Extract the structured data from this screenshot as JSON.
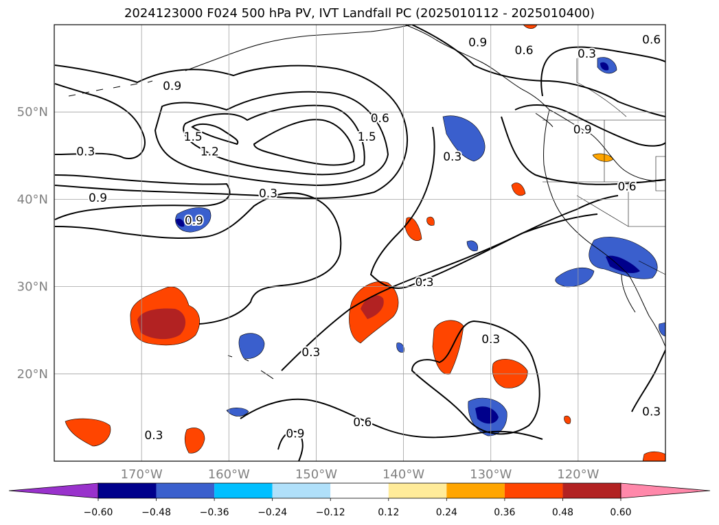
{
  "title": "2024123000 F024 500 hPa PV, IVT Landfall PC (2025010112 - 2025010400)",
  "map": {
    "lon_min": -180,
    "lon_max": -110,
    "lat_min": 10,
    "lat_max": 60,
    "lon_ticks": [
      -170,
      -160,
      -150,
      -140,
      -130,
      -120
    ],
    "lat_ticks": [
      20,
      30,
      40,
      50
    ],
    "lon_tick_labels": [
      "170°W",
      "160°W",
      "150°W",
      "140°W",
      "130°W",
      "120°W"
    ],
    "lat_tick_labels": [
      "20°N",
      "30°N",
      "40°N",
      "50°N"
    ],
    "grid": true
  },
  "colorbar": {
    "levels": [
      -0.6,
      -0.48,
      -0.36,
      -0.24,
      -0.12,
      0.12,
      0.24,
      0.36,
      0.48,
      0.6
    ],
    "tick_labels": [
      "−0.60",
      "−0.48",
      "−0.36",
      "−0.24",
      "−0.12",
      "0.12",
      "0.24",
      "0.36",
      "0.48",
      "0.60"
    ],
    "colors": [
      "#9932cc",
      "#00008b",
      "#3a5fcd",
      "#00bfff",
      "#b0e0fa",
      "#ffffff",
      "#ffeb99",
      "#ffa500",
      "#ff4500",
      "#b22222",
      "#ff88aa"
    ],
    "extend": "both"
  },
  "contour_labels": [
    {
      "text": "0.9",
      "lon": -166.5,
      "lat": 53.0
    },
    {
      "text": "0.9",
      "lon": -131.5,
      "lat": 58.0
    },
    {
      "text": "0.6",
      "lon": -126.2,
      "lat": 57.1
    },
    {
      "text": "0.3",
      "lon": -119.0,
      "lat": 56.7
    },
    {
      "text": "0.6",
      "lon": -111.6,
      "lat": 58.3
    },
    {
      "text": "0.6",
      "lon": -142.7,
      "lat": 49.3
    },
    {
      "text": "1.5",
      "lon": -164.1,
      "lat": 47.2
    },
    {
      "text": "1.2",
      "lon": -162.2,
      "lat": 45.5
    },
    {
      "text": "1.5",
      "lon": -144.2,
      "lat": 47.2
    },
    {
      "text": "0.3",
      "lon": -134.4,
      "lat": 44.9
    },
    {
      "text": "0.9",
      "lon": -119.5,
      "lat": 48.0
    },
    {
      "text": "0.3",
      "lon": -176.4,
      "lat": 45.5
    },
    {
      "text": "0.9",
      "lon": -175.0,
      "lat": 40.2
    },
    {
      "text": "0.3",
      "lon": -155.5,
      "lat": 40.7
    },
    {
      "text": "0.6",
      "lon": -114.4,
      "lat": 41.5
    },
    {
      "text": "0.9",
      "lon": -164.0,
      "lat": 37.6
    },
    {
      "text": "0.3",
      "lon": -137.6,
      "lat": 30.5
    },
    {
      "text": "0.3",
      "lon": -130.0,
      "lat": 24.0
    },
    {
      "text": "0.3",
      "lon": -150.6,
      "lat": 22.5
    },
    {
      "text": "0.6",
      "lon": -144.7,
      "lat": 14.5
    },
    {
      "text": "0.9",
      "lon": -152.4,
      "lat": 13.2
    },
    {
      "text": "0.3",
      "lon": -168.6,
      "lat": 13.0
    },
    {
      "text": "0.3",
      "lon": -111.6,
      "lat": 15.7
    }
  ]
}
